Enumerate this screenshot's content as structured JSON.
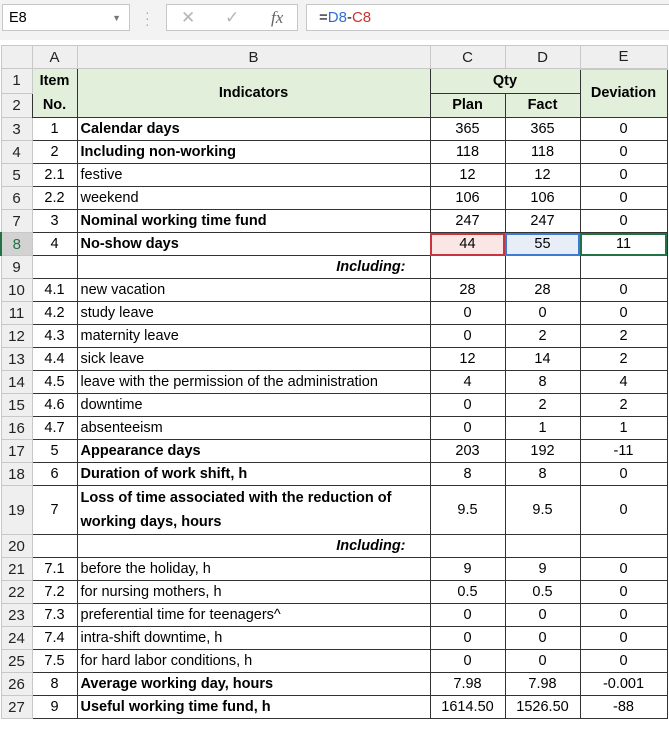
{
  "toolbar": {
    "name_box": "E8",
    "cancel_icon": "✕",
    "enter_icon": "✓",
    "fx_label": "fx",
    "formula_parts": [
      "=",
      "D8",
      "-",
      "C8"
    ]
  },
  "columns": [
    "A",
    "B",
    "C",
    "D",
    "E"
  ],
  "selected_cell": "E8",
  "header": {
    "item_no_1": "Item",
    "item_no_2": "No.",
    "indicators": "Indicators",
    "qty": "Qty",
    "plan": "Plan",
    "fact": "Fact",
    "deviation": "Deviation"
  },
  "rows": [
    {
      "r": "3",
      "item": "1",
      "label": "Calendar days",
      "plan": "365",
      "fact": "365",
      "dev": "0",
      "bold": true
    },
    {
      "r": "4",
      "item": "2",
      "label": "Including non-working",
      "plan": "118",
      "fact": "118",
      "dev": "0",
      "bold": true
    },
    {
      "r": "5",
      "item": "2.1",
      "label": "festive",
      "plan": "12",
      "fact": "12",
      "dev": "0"
    },
    {
      "r": "6",
      "item": "2.2",
      "label": "weekend",
      "plan": "106",
      "fact": "106",
      "dev": "0"
    },
    {
      "r": "7",
      "item": "3",
      "label": "Nominal working time fund",
      "plan": "247",
      "fact": "247",
      "dev": "0",
      "bold": true
    },
    {
      "r": "8",
      "item": "4",
      "label": "No-show days",
      "plan": "44",
      "fact": "55",
      "dev": "11",
      "bold": true
    },
    {
      "r": "9",
      "item": "",
      "label": "Including:",
      "plan": "",
      "fact": "",
      "dev": "",
      "section": true
    },
    {
      "r": "10",
      "item": "4.1",
      "label": "new vacation",
      "plan": "28",
      "fact": "28",
      "dev": "0"
    },
    {
      "r": "11",
      "item": "4.2",
      "label": "study leave",
      "plan": "0",
      "fact": "0",
      "dev": "0"
    },
    {
      "r": "12",
      "item": "4.3",
      "label": "maternity leave",
      "plan": "0",
      "fact": "2",
      "dev": "2"
    },
    {
      "r": "13",
      "item": "4.4",
      "label": "sick leave",
      "plan": "12",
      "fact": "14",
      "dev": "2"
    },
    {
      "r": "14",
      "item": "4.5",
      "label": "leave with the permission of the administration",
      "plan": "4",
      "fact": "8",
      "dev": "4"
    },
    {
      "r": "15",
      "item": "4.6",
      "label": "downtime",
      "plan": "0",
      "fact": "2",
      "dev": "2"
    },
    {
      "r": "16",
      "item": "4.7",
      "label": "absenteeism",
      "plan": "0",
      "fact": "1",
      "dev": "1"
    },
    {
      "r": "17",
      "item": "5",
      "label": "Appearance days",
      "plan": "203",
      "fact": "192",
      "dev": "-11",
      "bold": true
    },
    {
      "r": "18",
      "item": "6",
      "label": "Duration of work shift, h",
      "plan": "8",
      "fact": "8",
      "dev": "0",
      "bold": true
    },
    {
      "r": "19",
      "item": "7",
      "label": "Loss of time associated with the reduction of working days, hours",
      "plan": "9.5",
      "fact": "9.5",
      "dev": "0",
      "bold": true,
      "tall": true
    },
    {
      "r": "20",
      "item": "",
      "label": "Including:",
      "plan": "",
      "fact": "",
      "dev": "",
      "section": true
    },
    {
      "r": "21",
      "item": "7.1",
      "label": "before the holiday, h",
      "plan": "9",
      "fact": "9",
      "dev": "0"
    },
    {
      "r": "22",
      "item": "7.2",
      "label": "for nursing mothers, h",
      "plan": "0.5",
      "fact": "0.5",
      "dev": "0"
    },
    {
      "r": "23",
      "item": "7.3",
      "label": "preferential time for teenagers^",
      "plan": "0",
      "fact": "0",
      "dev": "0"
    },
    {
      "r": "24",
      "item": "7.4",
      "label": "intra-shift downtime, h",
      "plan": "0",
      "fact": "0",
      "dev": "0"
    },
    {
      "r": "25",
      "item": "7.5",
      "label": "for hard labor conditions, h",
      "plan": "0",
      "fact": "0",
      "dev": "0"
    },
    {
      "r": "26",
      "item": "8",
      "label": "Average working day, hours",
      "plan": "7.98",
      "fact": "7.98",
      "dev": "-0.001",
      "bold": true
    },
    {
      "r": "27",
      "item": "9",
      "label": "Useful working time fund, h",
      "plan": "1614.50",
      "fact": "1526.50",
      "dev": "-88",
      "bold": true
    }
  ]
}
